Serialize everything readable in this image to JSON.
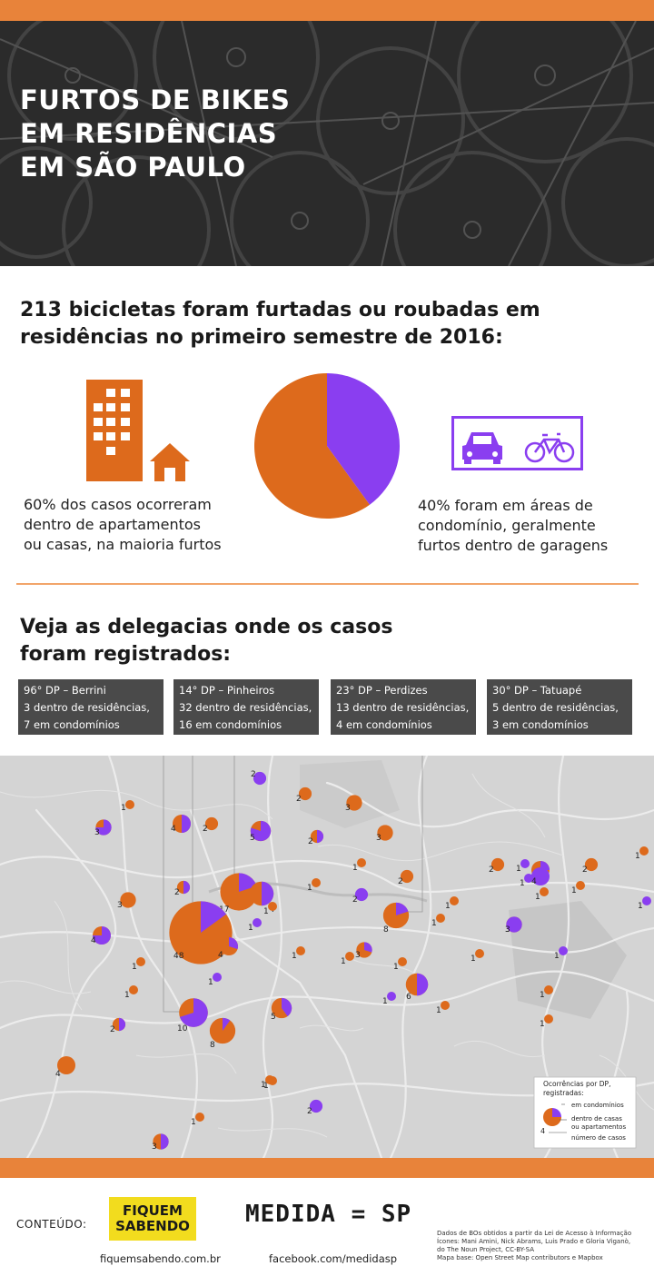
{
  "header": {
    "title_lines": [
      "FURTOS DE BIKES",
      "EM RESIDÊNCIAS",
      "EM SÃO PAULO"
    ]
  },
  "summary": {
    "headline_lines": [
      "213 bicicletas foram furtadas ou roubadas em",
      "residências no primeiro semestre de 2016:"
    ],
    "left_text": [
      "60% dos casos ocorreram",
      "dentro de apartamentos",
      "ou casas, na maioria furtos"
    ],
    "right_text": [
      "40% foram em áreas de",
      "condomínio, geralmente",
      "furtos dentro de garagens"
    ],
    "pie": {
      "residences_pct": 60,
      "condominium_pct": 40
    }
  },
  "colors": {
    "orange": "#dd6a1c",
    "purple": "#8a3ef0",
    "accent_bar": "#e8833a",
    "card_bg": "#4a4a4a"
  },
  "map_section": {
    "heading_lines": [
      "Veja as delegacias onde os casos",
      "foram registrados:"
    ],
    "cards": [
      {
        "lines": [
          "96° DP – Berrini",
          "3 dentro de residências,",
          "7 em condomínios"
        ]
      },
      {
        "lines": [
          "14° DP – Pinheiros",
          "32 dentro de residências,",
          "16 em condomínios"
        ]
      },
      {
        "lines": [
          "23° DP – Perdizes",
          "13 dentro de residências,",
          "4 em condomínios"
        ]
      },
      {
        "lines": [
          "30° DP – Tatuapé",
          "5 dentro de residências,",
          "3 em condomínios"
        ]
      }
    ],
    "legend": {
      "title_lines": [
        "Ocorrências por DP,",
        "registradas:"
      ],
      "condominium": "em condomínios",
      "residences_lines": [
        "dentro de casas",
        "ou apartamentos"
      ],
      "count_label": "número de casos",
      "sample_count": "4"
    },
    "points": [
      {
        "n": 3,
        "frac": 0.75
      },
      {
        "n": 2,
        "frac": 0
      },
      {
        "n": 1,
        "frac": 0
      },
      {
        "n": 4,
        "frac": 0.5
      },
      {
        "n": 2,
        "frac": 0
      },
      {
        "n": 3,
        "frac": 0
      },
      {
        "n": 3,
        "frac": 0
      },
      {
        "n": 5,
        "frac": 0.8
      },
      {
        "n": 2,
        "frac": 0.5
      },
      {
        "n": 2,
        "frac": 1
      },
      {
        "n": 1,
        "frac": 0
      },
      {
        "n": 1,
        "frac": 1
      },
      {
        "n": 2,
        "frac": 0
      },
      {
        "n": 1,
        "frac": 0
      },
      {
        "n": 2,
        "frac": 0
      },
      {
        "n": 1,
        "frac": 0
      },
      {
        "n": 4,
        "frac": 0.25
      },
      {
        "n": 1,
        "frac": 0
      },
      {
        "n": 1,
        "frac": 1
      },
      {
        "n": 2,
        "frac": 0.5
      },
      {
        "n": 3,
        "frac": 0
      },
      {
        "n": 17,
        "frac": 0.2
      },
      {
        "n": 7,
        "frac": 0.5
      },
      {
        "n": 1,
        "frac": 0
      },
      {
        "n": 2,
        "frac": 1
      },
      {
        "n": 2,
        "frac": 0
      },
      {
        "n": 1,
        "frac": 0
      },
      {
        "n": 8,
        "frac": 0.2
      },
      {
        "n": 1,
        "frac": 0
      },
      {
        "n": 3,
        "frac": 0
      },
      {
        "n": 1,
        "frac": 1
      },
      {
        "n": 4,
        "frac": 0.75
      },
      {
        "n": 48,
        "frac": 0.15
      },
      {
        "n": 4,
        "frac": 0.3
      },
      {
        "n": 1,
        "frac": 1
      },
      {
        "n": 1,
        "frac": 0
      },
      {
        "n": 1,
        "frac": 0
      },
      {
        "n": 3,
        "frac": 0.3
      },
      {
        "n": 1,
        "frac": 0
      },
      {
        "n": 1,
        "frac": 0
      },
      {
        "n": 1,
        "frac": 1
      },
      {
        "n": 1,
        "frac": 0
      },
      {
        "n": 1,
        "frac": 0
      },
      {
        "n": 1,
        "frac": 1
      },
      {
        "n": 1,
        "frac": 0
      },
      {
        "n": 10,
        "frac": 0.7
      },
      {
        "n": 2,
        "frac": 0.5
      },
      {
        "n": 8,
        "frac": 0.1
      },
      {
        "n": 5,
        "frac": 0.4
      },
      {
        "n": 6,
        "frac": 0.5
      },
      {
        "n": 1,
        "frac": 1
      },
      {
        "n": 1,
        "frac": 0
      },
      {
        "n": 1,
        "frac": 0
      },
      {
        "n": 1,
        "frac": 0
      },
      {
        "n": 4,
        "frac": 1
      },
      {
        "n": 3,
        "frac": 1
      },
      {
        "n": 1,
        "frac": 0
      },
      {
        "n": 1,
        "frac": 0
      },
      {
        "n": 4,
        "frac": 0
      },
      {
        "n": 2,
        "frac": 1
      },
      {
        "n": 1,
        "frac": 0
      },
      {
        "n": 3,
        "frac": 0.5
      }
    ]
  },
  "footer": {
    "content_label": "CONTEÚDO:",
    "partner_logo_lines": [
      "FIQUEM",
      "SABENDO"
    ],
    "partner_url": "fiquemsabendo.com.br",
    "brand": "MEDIDA = SP",
    "brand_url": "facebook.com/medidasp",
    "credits": [
      "Dados de BOs obtidos a partir da Lei de Acesso à Informação",
      "Ícones: Mani Amini, Nick Abrams, Luis Prado e Gloria Viganò,",
      "do The Noun Project, CC-BY-SA",
      "Mapa base: Open Street Map contributors e Mapbox"
    ]
  }
}
